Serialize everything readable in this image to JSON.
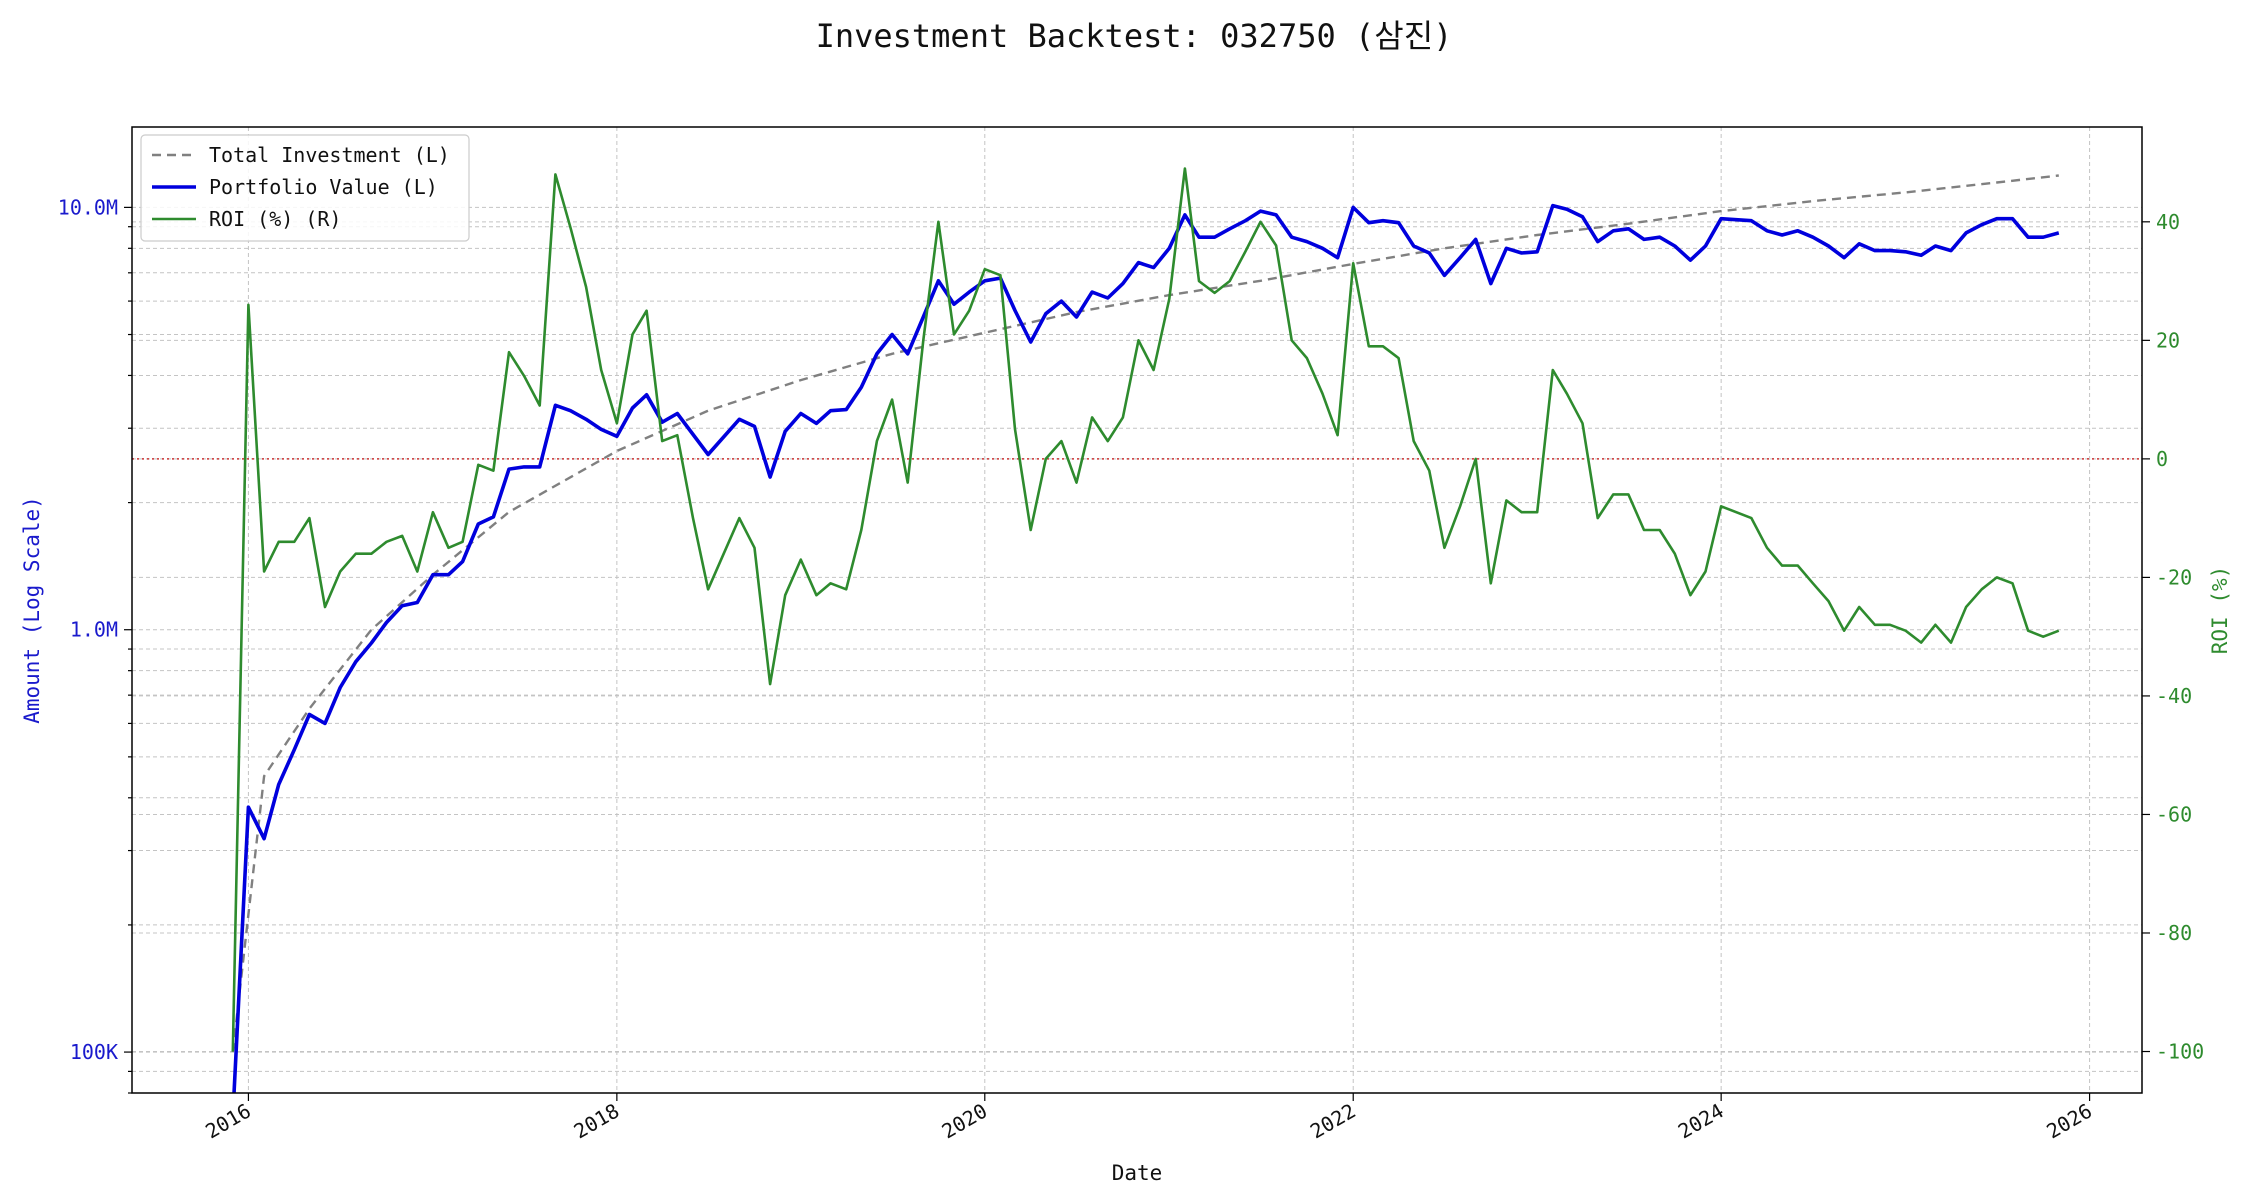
{
  "chart_data": {
    "type": "line",
    "title": "Investment Backtest: 032750 (삼진)",
    "xlabel": "Date",
    "ylabel_left": "Amount (Log Scale)",
    "ylabel_right": "ROI (%)",
    "y_left_scale": "log",
    "y_left_range": [
      80000,
      15500000
    ],
    "y_left_ticks": [
      {
        "value": 100000,
        "label": "100K"
      },
      {
        "value": 1000000,
        "label": "1.0M"
      },
      {
        "value": 10000000,
        "label": "10.0M"
      }
    ],
    "y_right_range": [
      -107,
      56
    ],
    "y_right_ticks": [
      "-100",
      "-80",
      "-60",
      "-40",
      "-20",
      "0",
      "20",
      "40"
    ],
    "x_range": [
      "2015-05-15",
      "2026-04-15"
    ],
    "x_ticks": [
      "2016",
      "2018",
      "2020",
      "2022",
      "2024",
      "2026"
    ],
    "grid": true,
    "legend_position": "top-left",
    "zero_line": {
      "axis": "right",
      "value": 0,
      "style": "dotted",
      "color": "#cc3333"
    },
    "colors": {
      "total_investment": "#808080",
      "portfolio_value": "#0000dd",
      "roi": "#2e8b2e"
    },
    "series": [
      {
        "name": "Total Investment (L)",
        "axis": "left",
        "style": "dashed",
        "x": [
          "2015-12-01",
          "2016-02-01",
          "2016-05-01",
          "2016-09-01",
          "2017-01-01",
          "2017-06-01",
          "2018-01-01",
          "2018-07-01",
          "2019-01-01",
          "2019-07-01",
          "2020-01-01",
          "2020-07-01",
          "2021-01-01",
          "2021-07-01",
          "2022-01-01",
          "2022-07-01",
          "2023-01-01",
          "2023-07-01",
          "2024-01-01",
          "2024-07-01",
          "2025-01-01",
          "2025-07-01",
          "2025-11-01"
        ],
        "values": [
          100000,
          450000,
          650000,
          1000000,
          1350000,
          1900000,
          2650000,
          3300000,
          3900000,
          4500000,
          5050000,
          5650000,
          6200000,
          6700000,
          7350000,
          8000000,
          8600000,
          9150000,
          9800000,
          10350000,
          10850000,
          11450000,
          11900000
        ]
      },
      {
        "name": "Portfolio Value (L)",
        "axis": "left",
        "style": "solid",
        "x": [
          "2015-12-01",
          "2016-01-01",
          "2016-02-01",
          "2016-03-01",
          "2016-04-01",
          "2016-05-01",
          "2016-06-01",
          "2016-07-01",
          "2016-08-01",
          "2016-09-01",
          "2016-10-01",
          "2016-11-01",
          "2016-12-01",
          "2017-01-01",
          "2017-02-01",
          "2017-03-01",
          "2017-04-01",
          "2017-05-01",
          "2017-06-01",
          "2017-07-01",
          "2017-08-01",
          "2017-09-01",
          "2017-10-01",
          "2017-11-01",
          "2017-12-01",
          "2018-01-01",
          "2018-02-01",
          "2018-03-01",
          "2018-04-01",
          "2018-05-01",
          "2018-07-01",
          "2018-09-01",
          "2018-10-01",
          "2018-11-01",
          "2018-12-01",
          "2019-01-01",
          "2019-02-01",
          "2019-03-01",
          "2019-04-01",
          "2019-05-01",
          "2019-06-01",
          "2019-07-01",
          "2019-08-01",
          "2019-09-01",
          "2019-10-01",
          "2019-11-01",
          "2019-12-01",
          "2020-01-01",
          "2020-02-01",
          "2020-03-01",
          "2020-04-01",
          "2020-05-01",
          "2020-06-01",
          "2020-07-01",
          "2020-08-01",
          "2020-09-01",
          "2020-10-01",
          "2020-11-01",
          "2020-12-01",
          "2021-01-01",
          "2021-02-01",
          "2021-03-01",
          "2021-04-01",
          "2021-05-01",
          "2021-06-01",
          "2021-07-01",
          "2021-08-01",
          "2021-09-01",
          "2021-10-01",
          "2021-11-01",
          "2021-12-01",
          "2022-01-01",
          "2022-02-01",
          "2022-03-01",
          "2022-04-01",
          "2022-05-01",
          "2022-06-01",
          "2022-07-01",
          "2022-08-01",
          "2022-09-01",
          "2022-10-01",
          "2022-11-01",
          "2022-12-01",
          "2023-01-01",
          "2023-02-01",
          "2023-03-01",
          "2023-04-01",
          "2023-05-01",
          "2023-06-01",
          "2023-07-01",
          "2023-08-01",
          "2023-09-01",
          "2023-10-01",
          "2023-11-01",
          "2023-12-01",
          "2024-01-01",
          "2024-03-01",
          "2024-04-01",
          "2024-05-01",
          "2024-06-01",
          "2024-07-01",
          "2024-08-01",
          "2024-09-01",
          "2024-10-01",
          "2024-11-01",
          "2024-12-01",
          "2025-01-01",
          "2025-02-01",
          "2025-03-01",
          "2025-04-01",
          "2025-05-01",
          "2025-06-01",
          "2025-07-01",
          "2025-08-01",
          "2025-09-01",
          "2025-10-01",
          "2025-11-01"
        ],
        "values": [
          70000,
          380000,
          320000,
          430000,
          520000,
          630000,
          600000,
          730000,
          840000,
          930000,
          1040000,
          1140000,
          1160000,
          1350000,
          1350000,
          1450000,
          1780000,
          1850000,
          2400000,
          2430000,
          2430000,
          3400000,
          3300000,
          3150000,
          2980000,
          2870000,
          3350000,
          3600000,
          3100000,
          3250000,
          2600000,
          3150000,
          3030000,
          2300000,
          2950000,
          3250000,
          3080000,
          3300000,
          3320000,
          3750000,
          4500000,
          5000000,
          4500000,
          5500000,
          6700000,
          5900000,
          6300000,
          6700000,
          6800000,
          5700000,
          4800000,
          5600000,
          6000000,
          5500000,
          6300000,
          6100000,
          6600000,
          7400000,
          7200000,
          8000000,
          9600000,
          8500000,
          8500000,
          8900000,
          9300000,
          9800000,
          9600000,
          8500000,
          8300000,
          8000000,
          7600000,
          10000000,
          9200000,
          9300000,
          9200000,
          8100000,
          7800000,
          6900000,
          7600000,
          8400000,
          6600000,
          8000000,
          7800000,
          7850000,
          10100000,
          9900000,
          9500000,
          8300000,
          8800000,
          8900000,
          8400000,
          8500000,
          8100000,
          7500000,
          8100000,
          9400000,
          9300000,
          8800000,
          8600000,
          8800000,
          8500000,
          8100000,
          7600000,
          8200000,
          7900000,
          7900000,
          7850000,
          7700000,
          8100000,
          7900000,
          8700000,
          9100000,
          9400000,
          9400000,
          8500000,
          8500000,
          8700000
        ]
      },
      {
        "name": "ROI (%) (R)",
        "axis": "right",
        "style": "solid",
        "x": [
          "2015-12-01",
          "2016-01-01",
          "2016-02-01",
          "2016-03-01",
          "2016-04-01",
          "2016-05-01",
          "2016-06-01",
          "2016-07-01",
          "2016-08-01",
          "2016-09-01",
          "2016-10-01",
          "2016-11-01",
          "2016-12-01",
          "2017-01-01",
          "2017-02-01",
          "2017-03-01",
          "2017-04-01",
          "2017-05-01",
          "2017-06-01",
          "2017-07-01",
          "2017-08-01",
          "2017-09-01",
          "2017-10-01",
          "2017-11-01",
          "2017-12-01",
          "2018-01-01",
          "2018-02-01",
          "2018-03-01",
          "2018-04-01",
          "2018-05-01",
          "2018-06-01",
          "2018-07-01",
          "2018-08-01",
          "2018-09-01",
          "2018-10-01",
          "2018-11-01",
          "2018-12-01",
          "2019-01-01",
          "2019-02-01",
          "2019-03-01",
          "2019-04-01",
          "2019-05-01",
          "2019-06-01",
          "2019-07-01",
          "2019-08-01",
          "2019-09-01",
          "2019-10-01",
          "2019-11-01",
          "2019-12-01",
          "2020-01-01",
          "2020-02-01",
          "2020-03-01",
          "2020-04-01",
          "2020-05-01",
          "2020-06-01",
          "2020-07-01",
          "2020-08-01",
          "2020-09-01",
          "2020-10-01",
          "2020-11-01",
          "2020-12-01",
          "2021-01-01",
          "2021-02-01",
          "2021-03-01",
          "2021-04-01",
          "2021-05-01",
          "2021-06-01",
          "2021-07-01",
          "2021-08-01",
          "2021-09-01",
          "2021-10-01",
          "2021-11-01",
          "2021-12-01",
          "2022-01-01",
          "2022-02-01",
          "2022-03-01",
          "2022-04-01",
          "2022-05-01",
          "2022-06-01",
          "2022-07-01",
          "2022-08-01",
          "2022-09-01",
          "2022-10-01",
          "2022-11-01",
          "2022-12-01",
          "2023-01-01",
          "2023-02-01",
          "2023-03-01",
          "2023-04-01",
          "2023-05-01",
          "2023-06-01",
          "2023-07-01",
          "2023-08-01",
          "2023-09-01",
          "2023-10-01",
          "2023-11-01",
          "2023-12-01",
          "2024-01-01",
          "2024-03-01",
          "2024-04-01",
          "2024-05-01",
          "2024-06-01",
          "2024-07-01",
          "2024-08-01",
          "2024-09-01",
          "2024-10-01",
          "2024-11-01",
          "2024-12-01",
          "2025-01-01",
          "2025-02-01",
          "2025-03-01",
          "2025-04-01",
          "2025-05-01",
          "2025-06-01",
          "2025-07-01",
          "2025-08-01",
          "2025-09-01",
          "2025-10-01",
          "2025-11-01"
        ],
        "values": [
          -100,
          26,
          -19,
          -14,
          -14,
          -10,
          -25,
          -19,
          -16,
          -16,
          -14,
          -13,
          -19,
          -9,
          -15,
          -14,
          -1,
          -2,
          18,
          14,
          9,
          48,
          39,
          29,
          15,
          6,
          21,
          25,
          3,
          4,
          -10,
          -22,
          -16,
          -10,
          -15,
          -38,
          -23,
          -17,
          -23,
          -21,
          -22,
          -12,
          3,
          10,
          -4,
          20,
          40,
          21,
          25,
          32,
          31,
          5,
          -12,
          0,
          3,
          -4,
          7,
          3,
          7,
          20,
          15,
          27,
          49,
          30,
          28,
          30,
          35,
          40,
          36,
          20,
          17,
          11,
          4,
          33,
          19,
          19,
          17,
          3,
          -2,
          -15,
          -8,
          0,
          -21,
          -7,
          -9,
          -9,
          15,
          11,
          6,
          -10,
          -6,
          -6,
          -12,
          -12,
          -16,
          -23,
          -19,
          -8,
          -10,
          -15,
          -18,
          -18,
          -21,
          -24,
          -29,
          -25,
          -28,
          -28,
          -29,
          -31,
          -28,
          -31,
          -25,
          -22,
          -20,
          -21,
          -29,
          -30,
          -29
        ]
      }
    ]
  }
}
